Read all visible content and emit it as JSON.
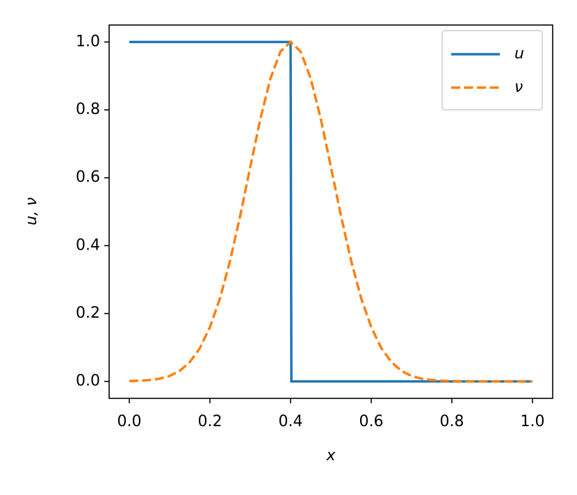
{
  "chart_data": {
    "type": "line",
    "xlabel": "x",
    "ylabel": "u, ν",
    "xlim": [
      -0.05,
      1.05
    ],
    "ylim": [
      -0.05,
      1.05
    ],
    "xticks": [
      {
        "value": 0,
        "label": "0.0"
      },
      0.2,
      0.4,
      0.6,
      0.8,
      {
        "value": 1,
        "label": "1.0"
      }
    ],
    "yticks": [
      {
        "value": 0,
        "label": "0.0"
      },
      0.2,
      0.4,
      0.6,
      0.8,
      {
        "value": 1,
        "label": "1.0"
      }
    ],
    "legend": "upper right",
    "series": [
      {
        "name": "u",
        "color": "#1f77b4",
        "dash": "solid",
        "x": [
          0,
          0.4,
          0.402,
          1
        ],
        "values": [
          1,
          1,
          0,
          0
        ]
      },
      {
        "name": "ν",
        "color": "#ff7f0e",
        "dash": "dashed",
        "x": [
          0,
          0.025,
          0.05,
          0.075,
          0.1,
          0.125,
          0.15,
          0.175,
          0.2,
          0.225,
          0.25,
          0.275,
          0.3,
          0.325,
          0.35,
          0.375,
          0.4,
          0.425,
          0.45,
          0.475,
          0.5,
          0.525,
          0.55,
          0.575,
          0.6,
          0.625,
          0.65,
          0.675,
          0.7,
          0.725,
          0.75,
          0.775,
          0.8,
          0.85,
          0.9,
          0.95,
          1
        ],
        "values": [
          0.001,
          0.002,
          0.004,
          0.008,
          0.016,
          0.031,
          0.057,
          0.098,
          0.16,
          0.245,
          0.356,
          0.488,
          0.632,
          0.773,
          0.892,
          0.972,
          1,
          0.972,
          0.892,
          0.773,
          0.632,
          0.488,
          0.356,
          0.245,
          0.16,
          0.098,
          0.057,
          0.031,
          0.016,
          0.008,
          0.004,
          0.002,
          0.001,
          0,
          0,
          0,
          0
        ]
      }
    ]
  }
}
